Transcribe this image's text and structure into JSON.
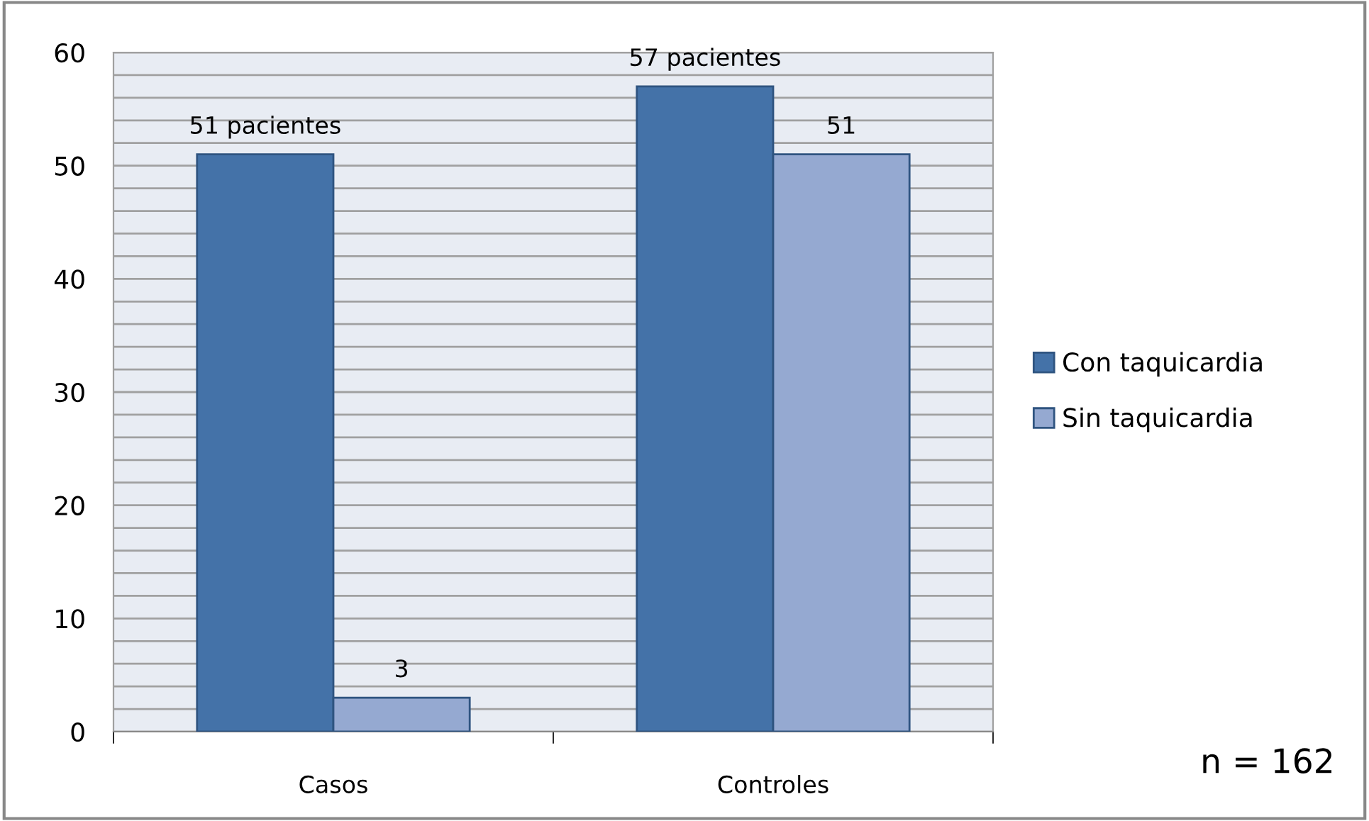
{
  "chart_data": {
    "type": "bar",
    "categories": [
      "Casos",
      "Controles"
    ],
    "series": [
      {
        "name": "Con taquicardia",
        "color": "#4472a8",
        "values": [
          51,
          57
        ],
        "value_labels": [
          "51 pacientes",
          "57 pacientes"
        ]
      },
      {
        "name": "Sin taquicardia",
        "color": "#95a9d1",
        "values": [
          3,
          51
        ],
        "value_labels": [
          "3",
          "51"
        ]
      }
    ],
    "ylim": [
      0,
      60
    ],
    "yticks": [
      0,
      {
        "value": 2,
        "label": null
      },
      {
        "value": 4,
        "label": null
      },
      {
        "value": 6,
        "label": null
      },
      {
        "value": 8,
        "label": null
      },
      10,
      {
        "value": 12,
        "label": null
      },
      {
        "value": 14,
        "label": null
      },
      {
        "value": 16,
        "label": null
      },
      {
        "value": 18,
        "label": null
      },
      20,
      {
        "value": 22,
        "label": null
      },
      {
        "value": 24,
        "label": null
      },
      {
        "value": 26,
        "label": null
      },
      {
        "value": 28,
        "label": null
      },
      30,
      {
        "value": 32,
        "label": null
      },
      {
        "value": 34,
        "label": null
      },
      {
        "value": 36,
        "label": null
      },
      {
        "value": 38,
        "label": null
      },
      40,
      {
        "value": 42,
        "label": null
      },
      {
        "value": 44,
        "label": null
      },
      {
        "value": 46,
        "label": null
      },
      {
        "value": 48,
        "label": null
      },
      50,
      {
        "value": 52,
        "label": null
      },
      {
        "value": 54,
        "label": null
      },
      {
        "value": 56,
        "label": null
      },
      {
        "value": 58,
        "label": null
      },
      60
    ],
    "grid": "y",
    "legend": "right",
    "annotations": [
      "n = 162"
    ]
  }
}
